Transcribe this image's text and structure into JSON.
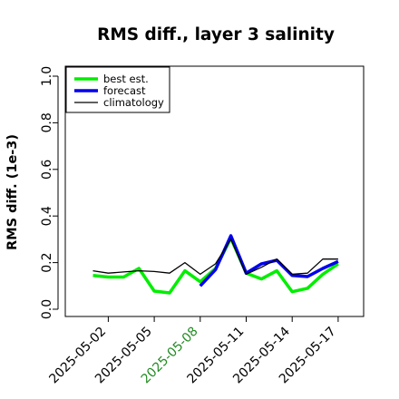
{
  "chart_data": {
    "type": "line",
    "title": "RMS diff., layer 3 salinity",
    "ylabel": "RMS diff. (1e-3)",
    "xlabel": "",
    "ylim": [
      0,
      1
    ],
    "yticks": [
      "0.0",
      "0.2",
      "0.4",
      "0.6",
      "0.8",
      "1.0"
    ],
    "xticks": [
      "2025-05-02",
      "2025-05-05",
      "2025-05-08",
      "2025-05-11",
      "2025-05-14",
      "2025-05-17"
    ],
    "highlight_tick": "2025-05-08",
    "highlight_color": "#228b22",
    "x": [
      "2025-05-01",
      "2025-05-02",
      "2025-05-03",
      "2025-05-04",
      "2025-05-05",
      "2025-05-06",
      "2025-05-07",
      "2025-05-08",
      "2025-05-09",
      "2025-05-10",
      "2025-05-11",
      "2025-05-12",
      "2025-05-13",
      "2025-05-14",
      "2025-05-15",
      "2025-05-16",
      "2025-05-17"
    ],
    "series": [
      {
        "name": "best est.",
        "color": "#00ee00",
        "values": [
          0.145,
          0.138,
          0.138,
          0.175,
          0.078,
          0.07,
          0.165,
          0.118,
          0.175,
          0.305,
          0.155,
          0.13,
          0.165,
          0.075,
          0.09,
          0.15,
          0.195
        ]
      },
      {
        "name": "forecast",
        "color": "#0000ee",
        "values": [
          null,
          null,
          null,
          null,
          null,
          null,
          null,
          0.1,
          0.17,
          0.315,
          0.155,
          0.195,
          0.21,
          0.145,
          0.14,
          0.175,
          0.205
        ]
      },
      {
        "name": "climatology",
        "color": "#000000",
        "values": [
          0.165,
          0.155,
          0.16,
          0.165,
          0.162,
          0.155,
          0.2,
          0.15,
          0.195,
          0.3,
          0.15,
          0.18,
          0.215,
          0.15,
          0.155,
          0.215,
          0.215
        ]
      }
    ],
    "legend_position": "top-left",
    "grid": false
  }
}
